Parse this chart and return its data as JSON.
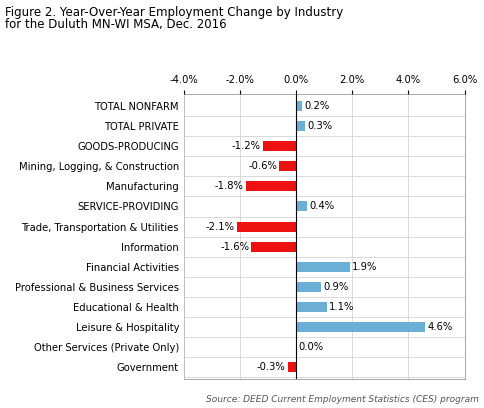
{
  "title_line1": "Figure 2. Year-Over-Year Employment Change by Industry",
  "title_line2": "for the Duluth MN-WI MSA, Dec. 2016",
  "categories": [
    "TOTAL NONFARM",
    "TOTAL PRIVATE",
    "GOODS-PRODUCING",
    "Mining, Logging, & Construction",
    "Manufacturing",
    "SERVICE-PROVIDING",
    "Trade, Transportation & Utilities",
    "Information",
    "Financial Activities",
    "Professional & Business Services",
    "Educational & Health",
    "Leisure & Hospitality",
    "Other Services (Private Only)",
    "Government"
  ],
  "values": [
    0.2,
    0.3,
    -1.2,
    -0.6,
    -1.8,
    0.4,
    -2.1,
    -1.6,
    1.9,
    0.9,
    1.1,
    4.6,
    0.0,
    -0.3
  ],
  "labels": [
    "0.2%",
    "0.3%",
    "-1.2%",
    "-0.6%",
    "-1.8%",
    "0.4%",
    "-2.1%",
    "-1.6%",
    "1.9%",
    "0.9%",
    "1.1%",
    "4.6%",
    "0.0%",
    "-0.3%"
  ],
  "color_positive": "#6BAED6",
  "color_negative": "#EE1111",
  "color_zero": "#6BAED6",
  "xlim": [
    -4.0,
    6.0
  ],
  "xticks": [
    -4.0,
    -2.0,
    0.0,
    2.0,
    4.0,
    6.0
  ],
  "xticklabels": [
    "-4.0%",
    "-2.0%",
    "0.0%",
    "2.0%",
    "4.0%",
    "6.0%"
  ],
  "source_text": "Source: DEED Current Employment Statistics (CES) program",
  "background_color": "#FFFFFF",
  "title_fontsize": 8.5,
  "label_fontsize": 7.2,
  "tick_fontsize": 7.2,
  "source_fontsize": 6.5,
  "bar_height": 0.5,
  "grid_color": "#CCCCCC",
  "border_color": "#999999"
}
